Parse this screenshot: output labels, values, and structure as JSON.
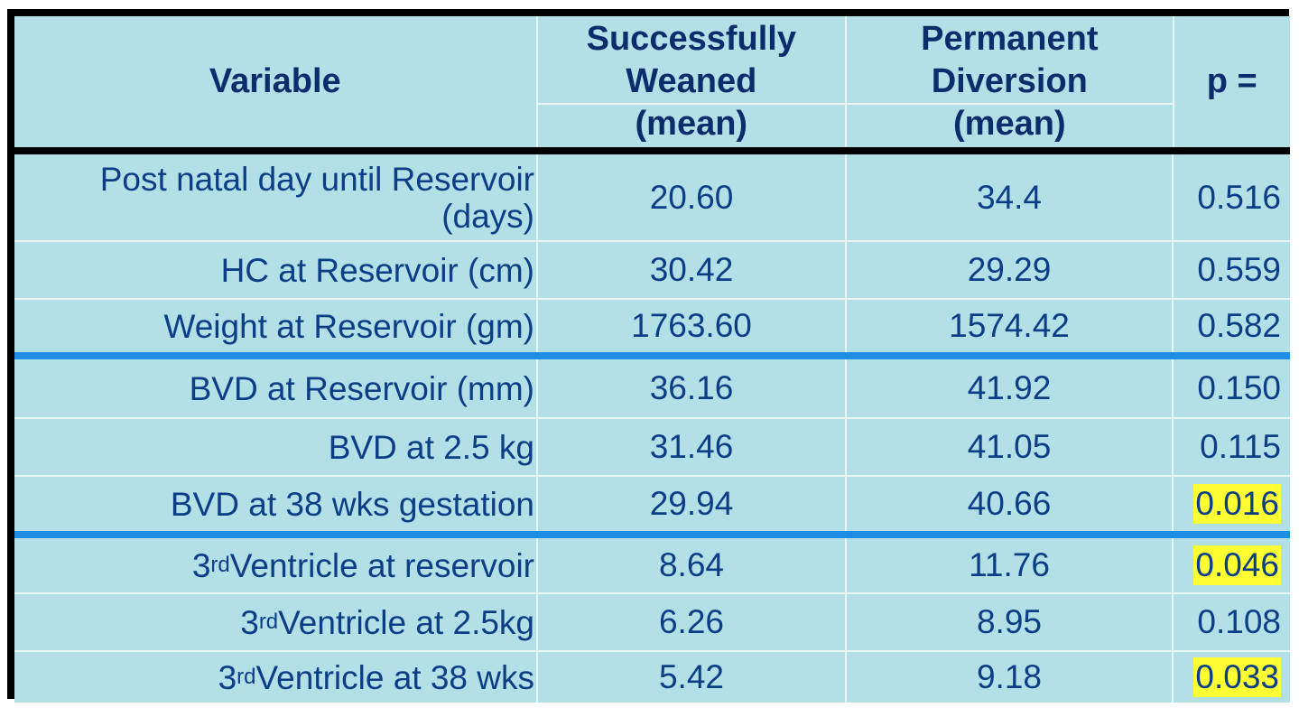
{
  "table": {
    "headers": {
      "variable": "Variable",
      "weaned": [
        "Successfully",
        "Weaned",
        "(mean)"
      ],
      "diversion": [
        "Permanent",
        "Diversion",
        "(mean)"
      ],
      "p": "p ="
    },
    "group1": [
      {
        "label": [
          "Post natal day until Reservoir",
          "(days)"
        ],
        "weaned": "20.60",
        "diversion": "34.4",
        "p": "0.516",
        "highlight": false
      },
      {
        "label": [
          "HC at Reservoir (cm)"
        ],
        "weaned": "30.42",
        "diversion": "29.29",
        "p": "0.559",
        "highlight": false
      },
      {
        "label": [
          "Weight at Reservoir (gm)"
        ],
        "weaned": "1763.60",
        "diversion": "1574.42",
        "p": "0.582",
        "highlight": false
      }
    ],
    "group2": [
      {
        "label": [
          "BVD at Reservoir (mm)"
        ],
        "weaned": "36.16",
        "diversion": "41.92",
        "p": "0.150",
        "highlight": false
      },
      {
        "label": [
          "BVD at 2.5 kg"
        ],
        "weaned": "31.46",
        "diversion": "41.05",
        "p": "0.115",
        "highlight": false
      },
      {
        "label": [
          "BVD at 38 wks gestation"
        ],
        "weaned": "29.94",
        "diversion": "40.66",
        "p": "0.016",
        "highlight": true
      }
    ],
    "group3": [
      {
        "label_num": "3",
        "label_sup": "rd",
        "label_rest": " Ventricle at reservoir",
        "weaned": "8.64",
        "diversion": "11.76",
        "p": "0.046",
        "highlight": true
      },
      {
        "label_num": "3",
        "label_sup": "rd",
        "label_rest": " Ventricle at 2.5kg",
        "weaned": "6.26",
        "diversion": "8.95",
        "p": "0.108",
        "highlight": false
      },
      {
        "label_num": "3",
        "label_sup": "rd",
        "label_rest": " Ventricle at 38 wks",
        "weaned": "5.42",
        "diversion": "9.18",
        "p": "0.033",
        "highlight": true
      }
    ]
  },
  "colors": {
    "cell_bg": "#b3dfe6",
    "header_text": "#0c2d6b",
    "body_text": "#0b3e86",
    "group_separator": "#1e8fe3",
    "highlight": "#ffff33",
    "border": "#000000"
  }
}
